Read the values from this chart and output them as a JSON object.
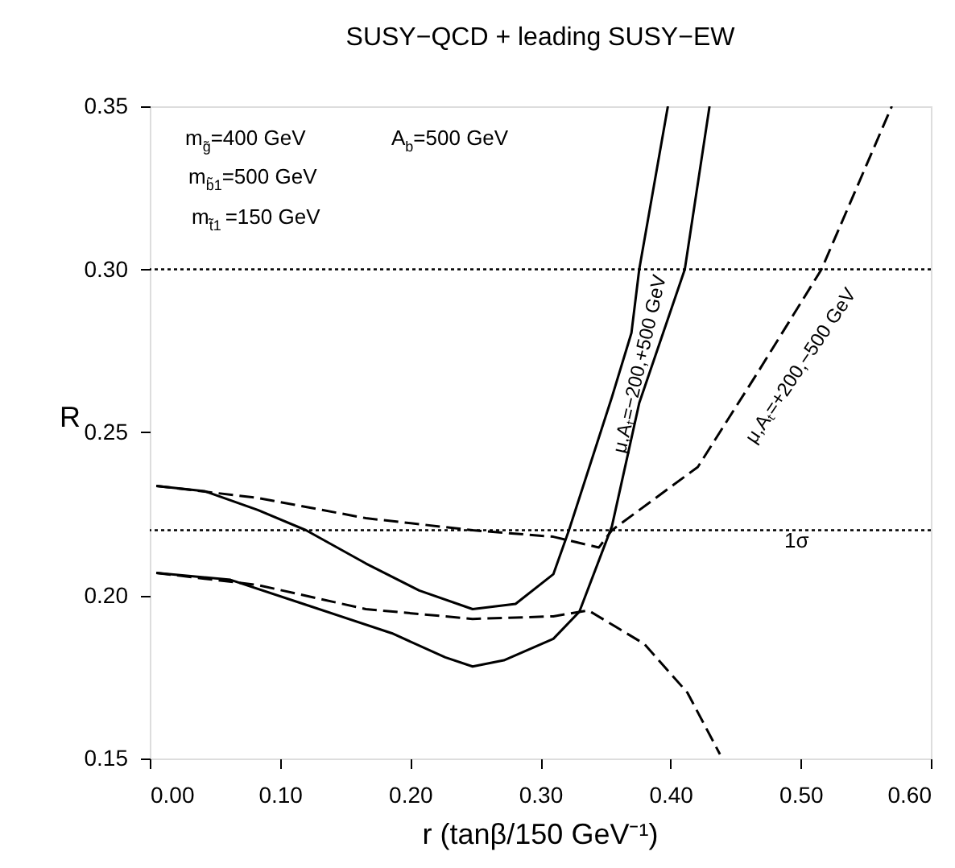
{
  "chart_data": {
    "type": "line",
    "title": "SUSY−QCD + leading SUSY−EW",
    "xlabel": "r (tanβ/150 GeV⁻¹)",
    "ylabel": "R",
    "xlim": [
      0,
      0.6
    ],
    "ylim": [
      0.15,
      0.35
    ],
    "xticks": [
      {
        "value": 0,
        "label": "0.00"
      },
      {
        "value": 0.1,
        "label": "0.10"
      },
      {
        "value": 0.2,
        "label": "0.20"
      },
      {
        "value": 0.3,
        "label": "0.30"
      },
      {
        "value": 0.4,
        "label": "0.40"
      },
      {
        "value": 0.5,
        "label": "0.50"
      },
      {
        "value": 0.6,
        "label": "0.60"
      }
    ],
    "yticks": [
      0.15,
      {
        "value": 0.2,
        "label": "0.20"
      },
      0.25,
      {
        "value": 0.3,
        "label": "0.30"
      },
      0.35
    ],
    "grid": false,
    "marker": "none",
    "series": [
      {
        "color": "#000000",
        "line_style": "solid",
        "x": [
          0.005,
          0.042,
          0.083,
          0.12,
          0.166,
          0.207,
          0.248,
          0.281,
          0.31,
          0.322,
          0.355,
          0.37,
          0.376,
          0.398
        ],
        "values": [
          0.2336,
          0.232,
          0.2262,
          0.22,
          0.2098,
          0.2015,
          0.1958,
          0.1974,
          0.2065,
          0.22,
          0.2608,
          0.2805,
          0.3,
          0.35
        ]
      },
      {
        "color": "#000000",
        "line_style": "solid",
        "x": [
          0.005,
          0.062,
          0.124,
          0.186,
          0.227,
          0.248,
          0.272,
          0.31,
          0.33,
          0.355,
          0.376,
          0.411,
          0.43
        ],
        "values": [
          0.2069,
          0.2048,
          0.1966,
          0.1884,
          0.181,
          0.1782,
          0.1801,
          0.1867,
          0.195,
          0.2212,
          0.259,
          0.3,
          0.35
        ]
      },
      {
        "color": "#000000",
        "line_style": "dashed",
        "x": [
          0.005,
          0.083,
          0.166,
          0.248,
          0.31,
          0.345,
          0.355,
          0.421,
          0.468,
          0.516,
          0.57
        ],
        "values": [
          0.2336,
          0.2299,
          0.2237,
          0.22,
          0.218,
          0.2147,
          0.22,
          0.2394,
          0.269,
          0.3,
          0.35
        ]
      },
      {
        "color": "#000000",
        "line_style": "dashed",
        "x": [
          0.005,
          0.083,
          0.166,
          0.248,
          0.31,
          0.337,
          0.38,
          0.413,
          0.438
        ],
        "values": [
          0.2069,
          0.2032,
          0.1958,
          0.1928,
          0.1936,
          0.1954,
          0.1851,
          0.1702,
          0.1513
        ]
      }
    ],
    "ref_lines": [
      {
        "axis": "y",
        "value": 0.3,
        "color": "#000000",
        "line_style": "dotted"
      },
      {
        "axis": "y",
        "value": 0.22,
        "color": "#000000",
        "line_style": "dotted"
      }
    ],
    "annotations": [
      "m$_{g̃}$=400 GeV",
      "A$_{b}$=500 GeV",
      "m$_{b̃1}$=500 GeV",
      "m$_{t̃1}$=150 GeV",
      "1σ",
      "μ,Aₜ=−200,+500 GeV",
      "μ,Aₜ=+200,−500 GeV"
    ]
  }
}
